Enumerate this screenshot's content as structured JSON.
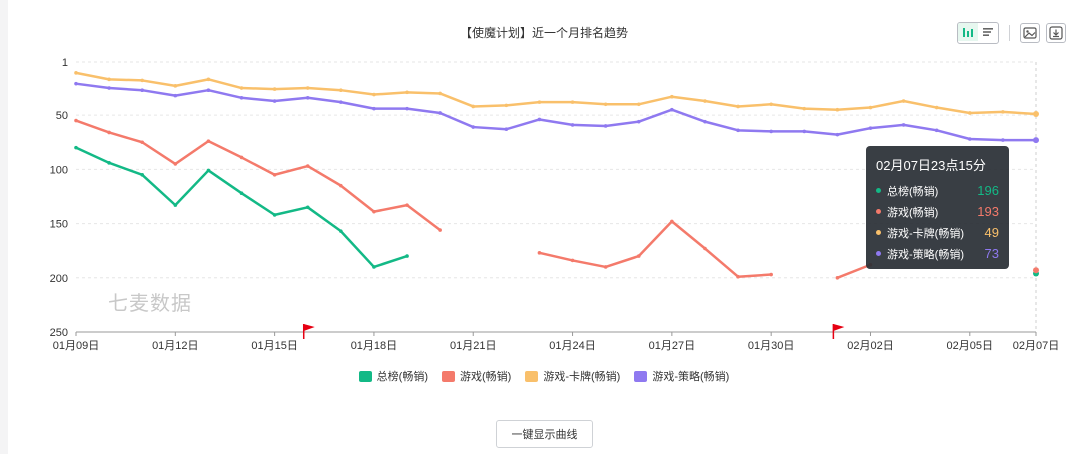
{
  "chart_data": {
    "type": "line",
    "title": "【使魔计划】近一个月排名趋势",
    "x": [
      "01月09日",
      "01月10日",
      "01月11日",
      "01月12日",
      "01月13日",
      "01月14日",
      "01月15日",
      "01月16日",
      "01月17日",
      "01月18日",
      "01月19日",
      "01月20日",
      "01月21日",
      "01月22日",
      "01月23日",
      "01月24日",
      "01月25日",
      "01月26日",
      "01月27日",
      "01月28日",
      "01月29日",
      "01月30日",
      "01月31日",
      "02月01日",
      "02月02日",
      "02月03日",
      "02月04日",
      "02月05日",
      "02月06日",
      "02月07日"
    ],
    "x_tick_labels": [
      "01月09日",
      "01月12日",
      "01月15日",
      "01月18日",
      "01月21日",
      "01月24日",
      "01月27日",
      "01月30日",
      "02月02日",
      "02月05日",
      "02月07日"
    ],
    "y_ticks": [
      1,
      50,
      100,
      150,
      200,
      250
    ],
    "ylim": [
      1,
      250
    ],
    "y_inverted": true,
    "grid": true,
    "legend_position": "bottom",
    "series": [
      {
        "name": "总榜(畅销)",
        "color": "#13b986",
        "values": [
          80,
          94,
          105,
          133,
          101,
          122,
          142,
          135,
          157,
          190,
          180,
          null,
          null,
          null,
          null,
          null,
          null,
          null,
          null,
          null,
          null,
          null,
          null,
          null,
          null,
          null,
          null,
          null,
          null,
          196
        ]
      },
      {
        "name": "游戏(畅销)",
        "color": "#f47a6b",
        "values": [
          55,
          66,
          75,
          95,
          74,
          89,
          105,
          97,
          115,
          139,
          133,
          156,
          null,
          null,
          177,
          184,
          190,
          180,
          148,
          173,
          199,
          197,
          null,
          200,
          188,
          null,
          null,
          null,
          null,
          193
        ]
      },
      {
        "name": "游戏-卡牌(畅销)",
        "color": "#f9c06b",
        "values": [
          11,
          17,
          18,
          23,
          17,
          25,
          26,
          25,
          27,
          31,
          29,
          30,
          42,
          41,
          38,
          38,
          40,
          40,
          33,
          37,
          42,
          40,
          44,
          45,
          43,
          37,
          43,
          48,
          47,
          49
        ]
      },
      {
        "name": "游戏-策略(畅销)",
        "color": "#8f79f0",
        "values": [
          21,
          25,
          27,
          32,
          27,
          34,
          37,
          34,
          38,
          44,
          44,
          48,
          61,
          63,
          54,
          59,
          60,
          56,
          45,
          56,
          64,
          65,
          65,
          68,
          62,
          59,
          64,
          72,
          73,
          73
        ]
      }
    ],
    "markers": [
      {
        "type": "flag",
        "x": "01月16日"
      },
      {
        "type": "flag",
        "x": "02月01日"
      }
    ],
    "tooltip": {
      "title": "02月07日23点15分",
      "rows": [
        {
          "name": "总榜(畅销)",
          "value": "196",
          "color": "#13b986"
        },
        {
          "name": "游戏(畅销)",
          "value": "193",
          "color": "#f47a6b"
        },
        {
          "name": "游戏-卡牌(畅销)",
          "value": "49",
          "color": "#f9c06b"
        },
        {
          "name": "游戏-策略(畅销)",
          "value": "73",
          "color": "#8f79f0"
        }
      ]
    }
  },
  "watermark": "七麦数据",
  "button_label": "一键显示曲线",
  "colors": {
    "grid": "#e6e6e6",
    "axis": "#999999",
    "flag": "#e60012"
  }
}
